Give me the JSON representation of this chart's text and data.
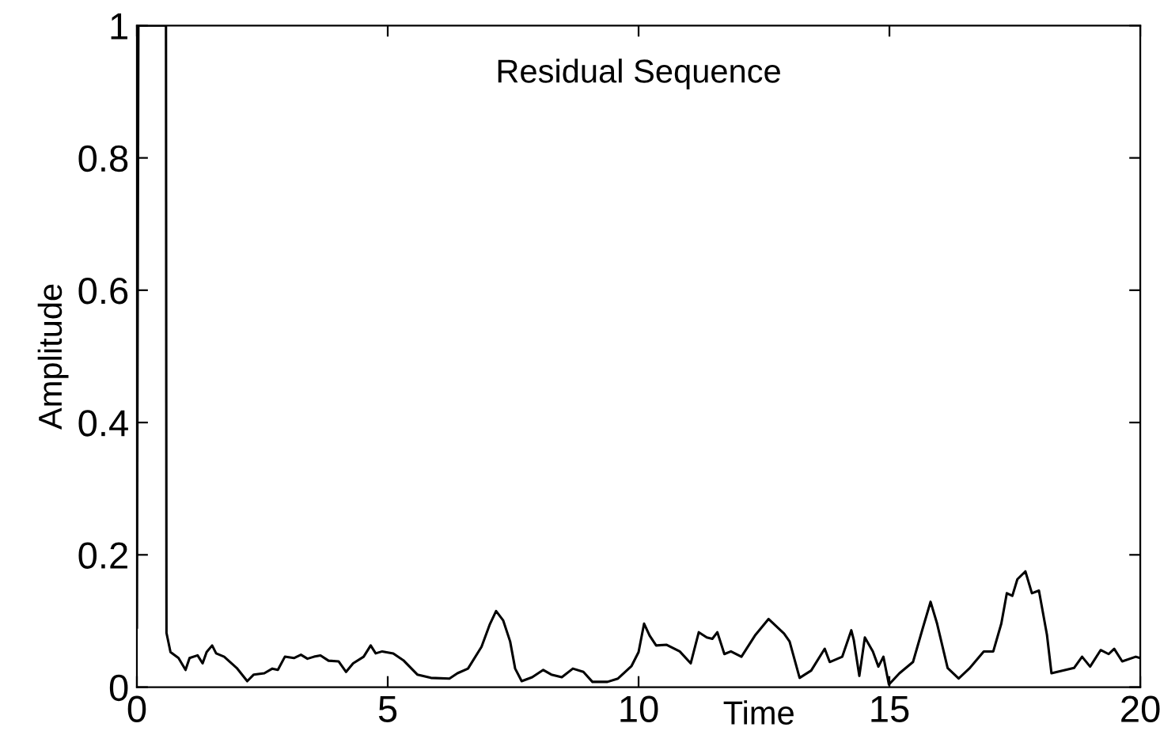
{
  "chart_data": {
    "type": "line",
    "title": "Residual Sequence",
    "xlabel": "Time",
    "ylabel": "Amplitude",
    "xlim": [
      0,
      20
    ],
    "ylim": [
      0,
      1
    ],
    "xticks": [
      0,
      5,
      10,
      15,
      20
    ],
    "yticks": [
      0,
      0.2,
      0.4,
      0.6,
      0.8,
      1
    ],
    "grid": false,
    "legend": false,
    "series": [
      {
        "color": "#000000",
        "x": [
          0,
          0.03,
          0.58,
          0.59,
          0.67,
          0.83,
          0.97,
          1.05,
          1.21,
          1.31,
          1.39,
          1.5,
          1.58,
          1.74,
          1.99,
          2.2,
          2.33,
          2.54,
          2.7,
          2.81,
          2.95,
          3.13,
          3.27,
          3.4,
          3.53,
          3.66,
          3.82,
          4.02,
          4.17,
          4.31,
          4.52,
          4.66,
          4.76,
          4.89,
          5.11,
          5.32,
          5.59,
          5.86,
          6.23,
          6.39,
          6.6,
          6.87,
          7.03,
          7.16,
          7.3,
          7.44,
          7.54,
          7.67,
          7.88,
          8.1,
          8.26,
          8.47,
          8.69,
          8.9,
          9.08,
          9.38,
          9.59,
          9.86,
          10.0,
          10.11,
          10.22,
          10.35,
          10.56,
          10.82,
          11.04,
          11.2,
          11.36,
          11.47,
          11.57,
          11.71,
          11.84,
          12.05,
          12.32,
          12.59,
          12.9,
          13.01,
          13.21,
          13.44,
          13.71,
          13.81,
          14.06,
          14.24,
          14.29,
          14.4,
          14.51,
          14.67,
          14.78,
          14.88,
          14.99,
          15.2,
          15.47,
          15.66,
          15.82,
          15.95,
          16.16,
          16.38,
          16.59,
          16.88,
          17.07,
          17.23,
          17.34,
          17.45,
          17.55,
          17.71,
          17.84,
          17.98,
          18.14,
          18.23,
          18.68,
          18.84,
          19.0,
          19.21,
          19.37,
          19.48,
          19.64,
          19.91,
          20.0
        ],
        "values": [
          0.09,
          1,
          1,
          0.082,
          0.053,
          0.044,
          0.026,
          0.044,
          0.048,
          0.036,
          0.053,
          0.063,
          0.051,
          0.046,
          0.029,
          0.009,
          0.019,
          0.021,
          0.028,
          0.026,
          0.046,
          0.044,
          0.049,
          0.043,
          0.046,
          0.048,
          0.04,
          0.039,
          0.023,
          0.036,
          0.046,
          0.063,
          0.051,
          0.054,
          0.051,
          0.04,
          0.019,
          0.014,
          0.013,
          0.021,
          0.028,
          0.061,
          0.094,
          0.115,
          0.101,
          0.069,
          0.028,
          0.009,
          0.015,
          0.026,
          0.019,
          0.015,
          0.028,
          0.023,
          0.008,
          0.008,
          0.013,
          0.032,
          0.053,
          0.096,
          0.078,
          0.063,
          0.064,
          0.054,
          0.036,
          0.083,
          0.075,
          0.073,
          0.083,
          0.05,
          0.054,
          0.046,
          0.078,
          0.103,
          0.081,
          0.069,
          0.014,
          0.025,
          0.058,
          0.038,
          0.046,
          0.086,
          0.071,
          0.017,
          0.075,
          0.054,
          0.031,
          0.046,
          0.004,
          0.021,
          0.038,
          0.088,
          0.129,
          0.096,
          0.029,
          0.013,
          0.028,
          0.054,
          0.054,
          0.096,
          0.142,
          0.138,
          0.163,
          0.175,
          0.142,
          0.146,
          0.079,
          0.021,
          0.029,
          0.046,
          0.031,
          0.056,
          0.05,
          0.058,
          0.039,
          0.046,
          0.044
        ]
      }
    ]
  }
}
